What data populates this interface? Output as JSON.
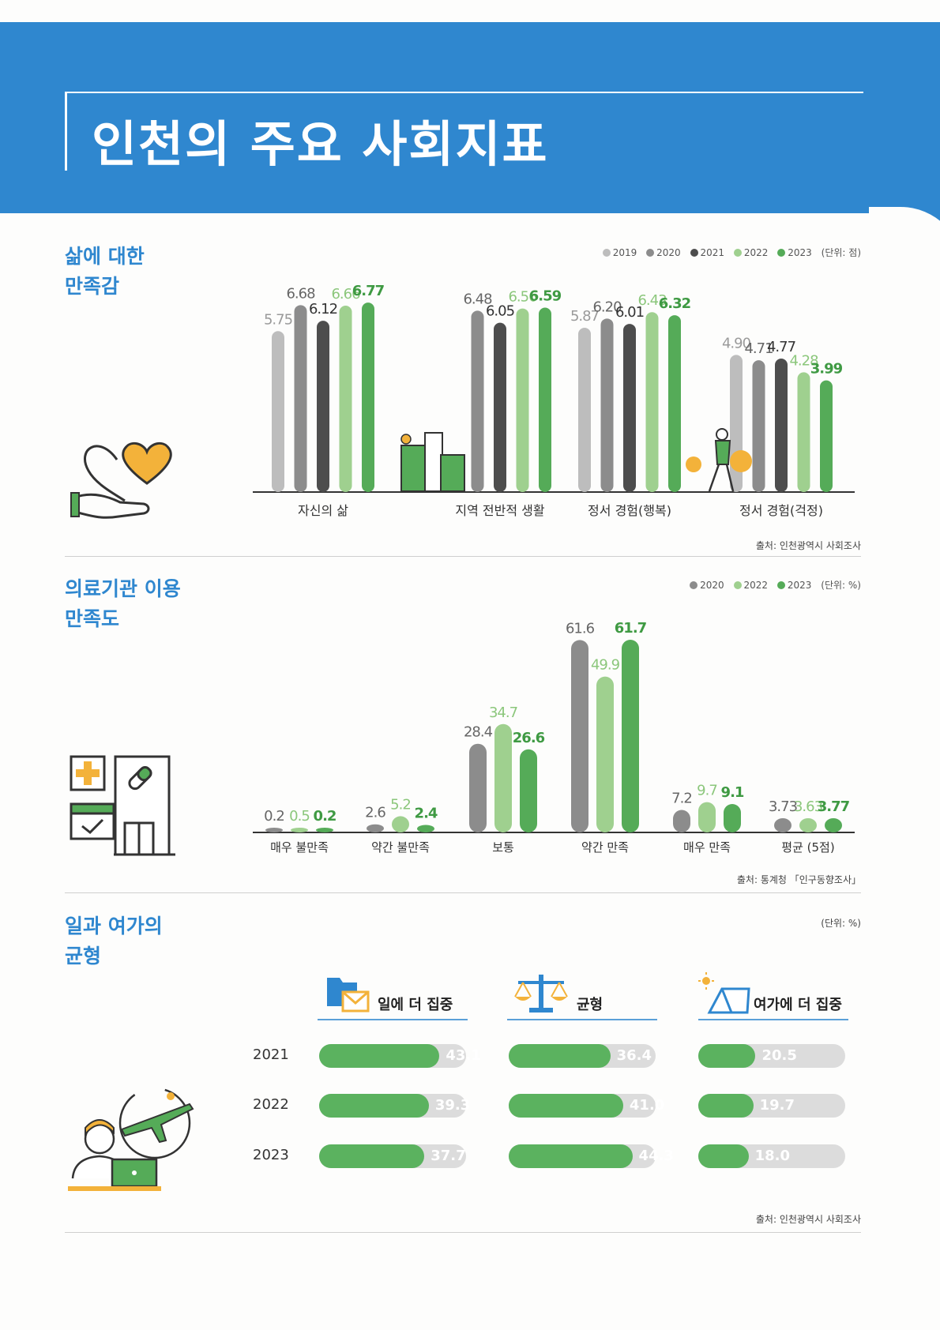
{
  "page_title": "인천의 주요 사회지표",
  "colors": {
    "header_blue": "#2f87cf",
    "y2019": "#bdbdbd",
    "y2020": "#8c8c8c",
    "y2021": "#4d4d4d",
    "y2022": "#9fd08f",
    "y2023": "#55ab58"
  },
  "sections": {
    "life": {
      "title_line1": "삶에 대한",
      "title_line2": "만족감",
      "legend": [
        "2019",
        "2020",
        "2021",
        "2022",
        "2023"
      ],
      "unit": "(단위: 점)",
      "source": "출처: 인천광역시 사회조사",
      "icon": "heart-hand-icon"
    },
    "medical": {
      "title_line1": "의료기관 이용",
      "title_line2": "만족도",
      "legend": [
        "2020",
        "2022",
        "2023"
      ],
      "unit": "(단위: %)",
      "source": "출처: 통계청 「인구동향조사」",
      "icon": "hospital-icon"
    },
    "worklife": {
      "title_line1": "일과 여가의",
      "title_line2": "균형",
      "unit": "(단위: %)",
      "source": "출처: 인천광역시 사회조사",
      "icon": "worker-airplane-icon",
      "columns": [
        {
          "label": "일에 더 집중",
          "icon": "folder-mail-icon"
        },
        {
          "label": "균형",
          "icon": "scale-icon"
        },
        {
          "label": "여가에 더 집중",
          "icon": "tent-sun-icon"
        }
      ],
      "years": [
        "2021",
        "2022",
        "2023"
      ]
    }
  },
  "chart_data": [
    {
      "type": "bar",
      "categories": [
        "자신의 삶",
        "지역 전반적 생활",
        "정서 경험(행복)",
        "정서 경험(걱정)"
      ],
      "series": [
        {
          "name": "2019",
          "values": [
            5.75,
            null,
            5.87,
            4.9
          ]
        },
        {
          "name": "2020",
          "values": [
            6.68,
            6.48,
            6.2,
            4.71
          ]
        },
        {
          "name": "2021",
          "values": [
            6.12,
            6.05,
            6.01,
            4.77
          ]
        },
        {
          "name": "2022",
          "values": [
            6.66,
            6.56,
            6.43,
            4.28
          ]
        },
        {
          "name": "2023",
          "values": [
            6.77,
            6.59,
            6.32,
            3.99
          ]
        }
      ],
      "labels": [
        [
          "5.75",
          "6.68",
          "6.12",
          "6.66",
          "6.77"
        ],
        [
          "",
          "6.48",
          "6.05",
          "6.56",
          "6.59"
        ],
        [
          "5.87",
          "6.20",
          "6.01",
          "6.43",
          "6.32"
        ],
        [
          "4.90",
          "4.71",
          "4.77",
          "4.28",
          "3.99"
        ]
      ],
      "ylim": [
        0,
        7
      ]
    },
    {
      "type": "bar",
      "categories": [
        "매우 불만족",
        "약간 불만족",
        "보통",
        "약간 만족",
        "매우 만족",
        "평균 (5점)"
      ],
      "series": [
        {
          "name": "2020",
          "values": [
            0.2,
            2.6,
            28.4,
            61.6,
            7.2,
            3.73
          ]
        },
        {
          "name": "2022",
          "values": [
            0.5,
            5.2,
            34.7,
            49.9,
            9.7,
            3.63
          ]
        },
        {
          "name": "2023",
          "values": [
            0.2,
            2.4,
            26.6,
            61.7,
            9.1,
            3.77
          ]
        }
      ],
      "labels": [
        [
          "0.2",
          "0.5",
          "0.2"
        ],
        [
          "2.6",
          "5.2",
          "2.4"
        ],
        [
          "28.4",
          "34.7",
          "26.6"
        ],
        [
          "61.6",
          "49.9",
          "61.7"
        ],
        [
          "7.2",
          "9.7",
          "9.1"
        ],
        [
          "3.73",
          "3.63",
          "3.77"
        ]
      ],
      "ylim": [
        0,
        65
      ]
    },
    {
      "type": "bar",
      "categories": [
        "2021",
        "2022",
        "2023"
      ],
      "series": [
        {
          "name": "일에 더 집중",
          "values": [
            43.1,
            39.3,
            37.7
          ]
        },
        {
          "name": "균형",
          "values": [
            36.4,
            41.0,
            44.3
          ]
        },
        {
          "name": "여가에 더 집중",
          "values": [
            20.5,
            19.7,
            18.0
          ]
        }
      ],
      "labels": [
        [
          "43.1",
          "39.3",
          "37.7"
        ],
        [
          "36.4",
          "41.0",
          "44.3"
        ],
        [
          "20.5",
          "19.7",
          "18.0"
        ]
      ]
    }
  ]
}
